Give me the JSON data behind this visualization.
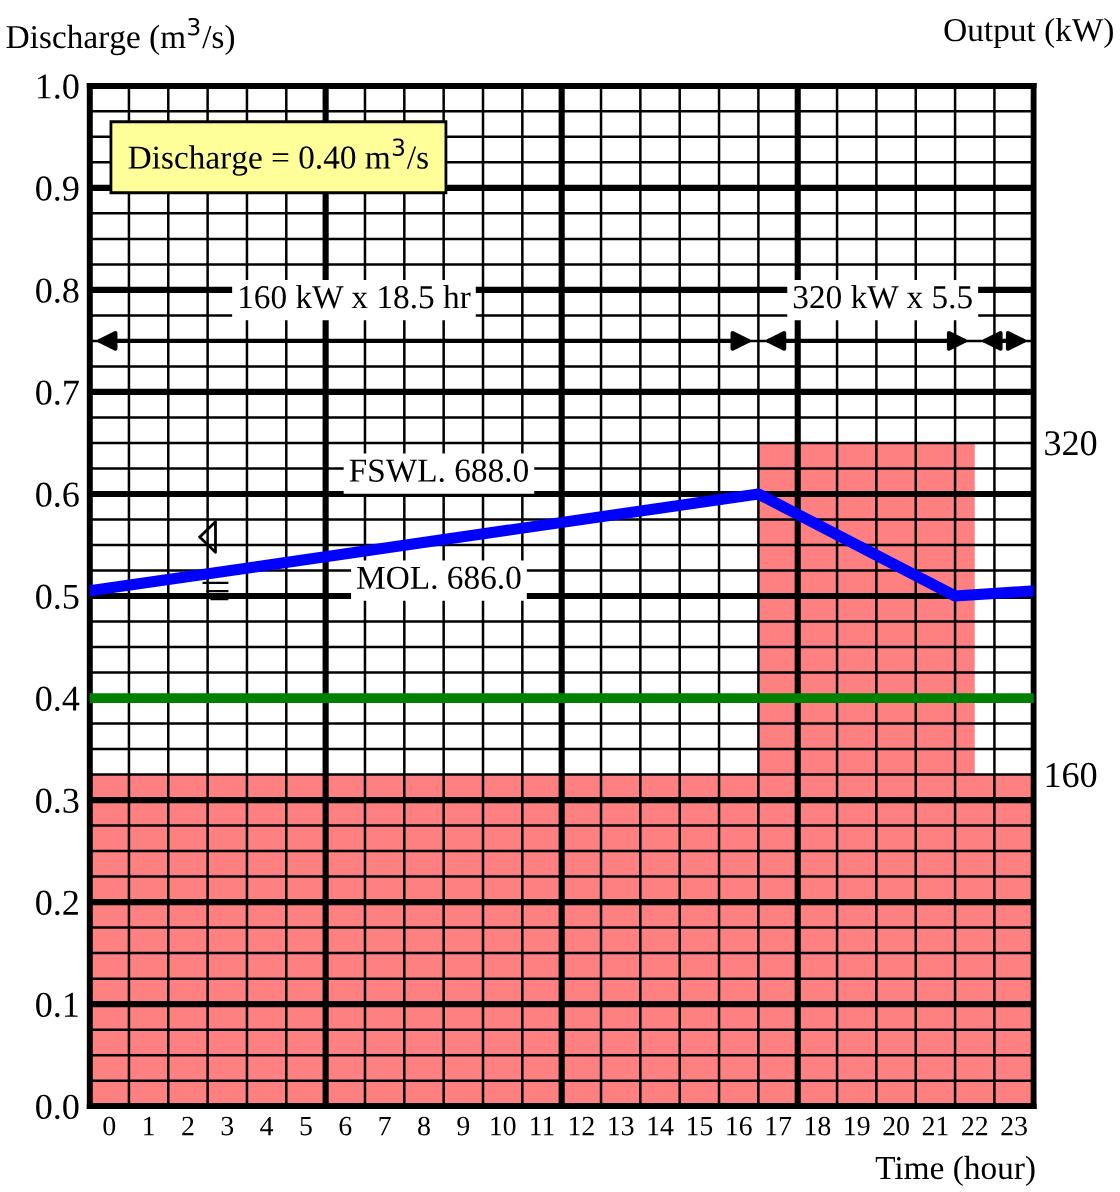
{
  "chart_data": {
    "type": "line",
    "ylabel": "Discharge (m$^{3}$/s)",
    "y2label": "Output (kW)",
    "xlabel": "Time (hour)",
    "xlim": [
      0,
      24
    ],
    "xticks": [
      {
        "value": 0.5,
        "label": "0"
      },
      {
        "value": 1.5,
        "label": "1"
      },
      {
        "value": 2.5,
        "label": "2"
      },
      {
        "value": 3.5,
        "label": "3"
      },
      {
        "value": 4.5,
        "label": "4"
      },
      {
        "value": 5.5,
        "label": "5"
      },
      {
        "value": 6.5,
        "label": "6"
      },
      {
        "value": 7.5,
        "label": "7"
      },
      {
        "value": 8.5,
        "label": "8"
      },
      {
        "value": 9.5,
        "label": "9"
      },
      {
        "value": 10.5,
        "label": "10"
      },
      {
        "value": 11.5,
        "label": "11"
      },
      {
        "value": 12.5,
        "label": "12"
      },
      {
        "value": 13.5,
        "label": "13"
      },
      {
        "value": 14.5,
        "label": "14"
      },
      {
        "value": 15.5,
        "label": "15"
      },
      {
        "value": 16.5,
        "label": "16"
      },
      {
        "value": 17.5,
        "label": "17"
      },
      {
        "value": 18.5,
        "label": "18"
      },
      {
        "value": 19.5,
        "label": "19"
      },
      {
        "value": 20.5,
        "label": "20"
      },
      {
        "value": 21.5,
        "label": "21"
      },
      {
        "value": 22.5,
        "label": "22"
      },
      {
        "value": 23.5,
        "label": "23"
      }
    ],
    "ylim": [
      0,
      1.0
    ],
    "yticks": [
      {
        "value": 0,
        "label": "0.0"
      },
      0.1,
      0.2,
      0.3,
      0.4,
      0.5,
      0.6,
      0.7,
      0.8,
      0.9,
      {
        "value": 1.0,
        "label": "1.0"
      }
    ],
    "y2lim": [
      0,
      492
    ],
    "y2ticks": [
      160,
      320
    ],
    "grid": true,
    "series": [
      {
        "type": "area",
        "axis": "y2",
        "color": "#ff8080",
        "x": [
          0,
          17,
          22.5,
          24
        ],
        "values": [
          160,
          320,
          160,
          160
        ]
      },
      {
        "color": "#0000ff",
        "x": [
          0,
          17,
          22,
          24
        ],
        "values": [
          0.505,
          0.6,
          0.5,
          0.505
        ]
      }
    ],
    "ref_lines": [
      {
        "axis": "y",
        "value": 0.4,
        "color": "#008000"
      }
    ],
    "annotations": [
      "Discharge = 0.40 m$^{3}$/s",
      "160 kW x 18.5 hr",
      "320 kW x 5.5",
      "FSWL. 688.0",
      "MOL. 686.0"
    ]
  }
}
